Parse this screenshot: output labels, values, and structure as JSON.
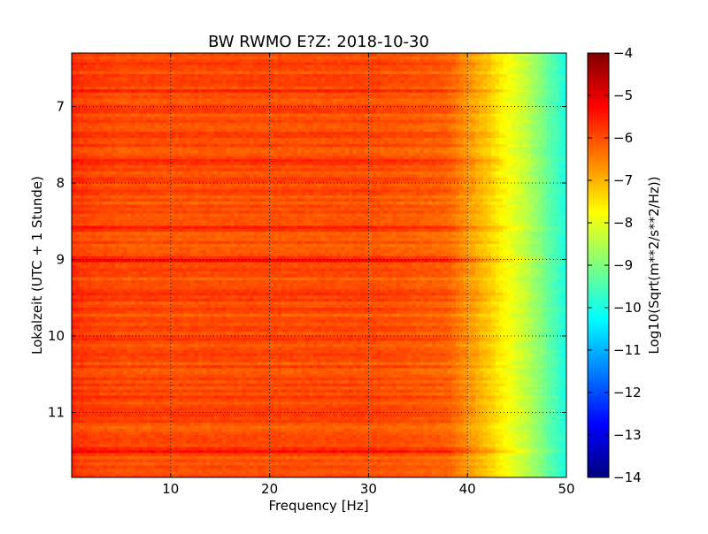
{
  "chart_data": {
    "type": "heatmap",
    "title": "BW RWMO E?Z: 2018-10-30",
    "xlabel": "Frequency [Hz]",
    "ylabel": "Lokalzeit (UTC + 1 Stunde)",
    "xlim": [
      0,
      50
    ],
    "ylim": [
      6.3,
      11.85
    ],
    "y_inverted": true,
    "x_ticks": [
      10,
      20,
      30,
      40,
      50
    ],
    "y_ticks": [
      7,
      8,
      9,
      10,
      11
    ],
    "grid": true,
    "colormap": "jet",
    "colorbar": {
      "label": "Log10(Sqrt(m**2/s**2/Hz))",
      "range": [
        -14,
        -4
      ],
      "ticks": [
        -4,
        -5,
        -6,
        -7,
        -8,
        -9,
        -10,
        -11,
        -12,
        -13,
        -14
      ]
    },
    "baseline_profile": {
      "frequency_hz": [
        0,
        0.5,
        2,
        5,
        10,
        20,
        30,
        38,
        40,
        42,
        44,
        46,
        48,
        50
      ],
      "log_value": [
        -5.6,
        -5.8,
        -5.9,
        -6.0,
        -6.0,
        -6.0,
        -6.0,
        -6.2,
        -6.7,
        -7.2,
        -7.8,
        -8.4,
        -9.2,
        -10.0
      ]
    },
    "strong_bands": [
      {
        "time": 9.0,
        "delta": 0.9
      },
      {
        "time": 11.5,
        "delta": 0.6
      },
      {
        "time": 10.82,
        "delta": 0.5
      },
      {
        "time": 9.45,
        "delta": 0.45
      },
      {
        "time": 7.7,
        "delta": 0.45
      },
      {
        "time": 6.8,
        "delta": 0.35
      },
      {
        "time": 8.6,
        "delta": 0.4
      }
    ]
  }
}
